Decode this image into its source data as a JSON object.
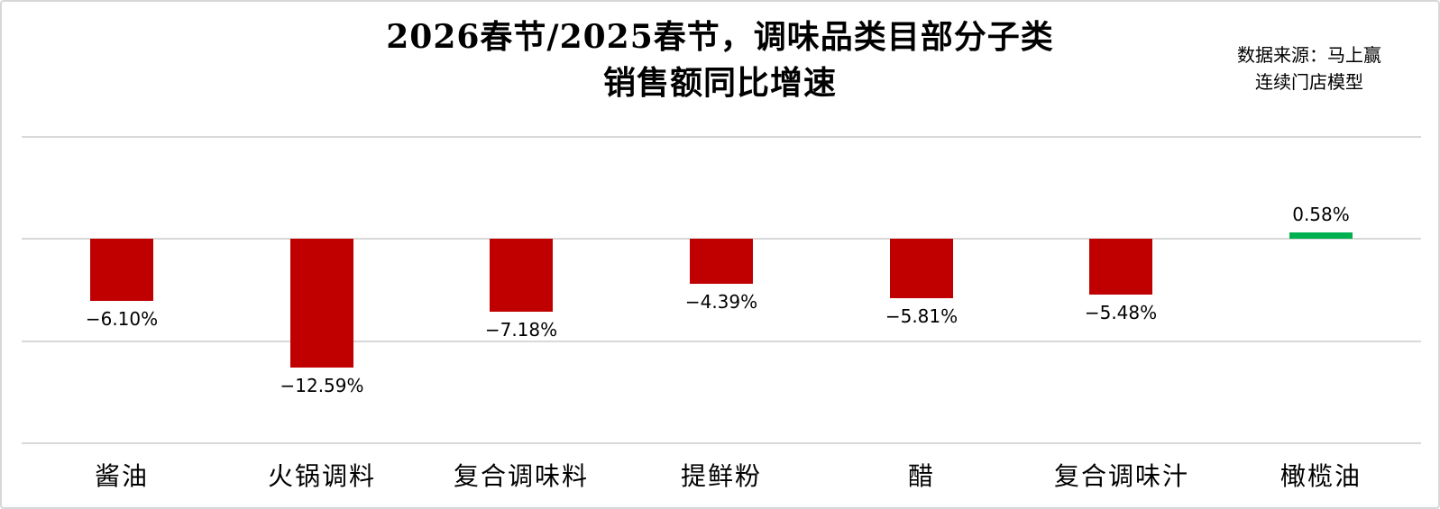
{
  "header": {
    "title_line1": "2026春节/2025春节，调味品类目部分子类",
    "title_line2": "销售额同比增速",
    "source_line1": "数据来源：马上赢",
    "source_line2": "连续门店模型"
  },
  "chart_data": {
    "type": "bar",
    "title": "2026春节/2025春节，调味品类目部分子类销售额同比增速",
    "source": "数据来源：马上赢 连续门店模型",
    "categories": [
      "酱油",
      "火锅调料",
      "复合调味料",
      "提鲜粉",
      "醋",
      "复合调味汁",
      "橄榄油"
    ],
    "values": [
      -6.1,
      -12.59,
      -7.18,
      -4.39,
      -5.81,
      -5.48,
      0.58
    ],
    "value_labels": [
      "−6.10%",
      "−12.59%",
      "−7.18%",
      "−4.39%",
      "−5.81%",
      "−5.48%",
      "0.58%"
    ],
    "xlabel": "",
    "ylabel": "",
    "ylim": [
      -20,
      10
    ],
    "gridline_values": [
      10,
      0,
      -10,
      -20
    ],
    "legend": "none",
    "colors": {
      "negative_bar": "#C00000",
      "positive_bar": "#00B050",
      "gridline": "#D9D9D9",
      "frame_border": "#D7D7D7",
      "text": "#000000"
    }
  }
}
